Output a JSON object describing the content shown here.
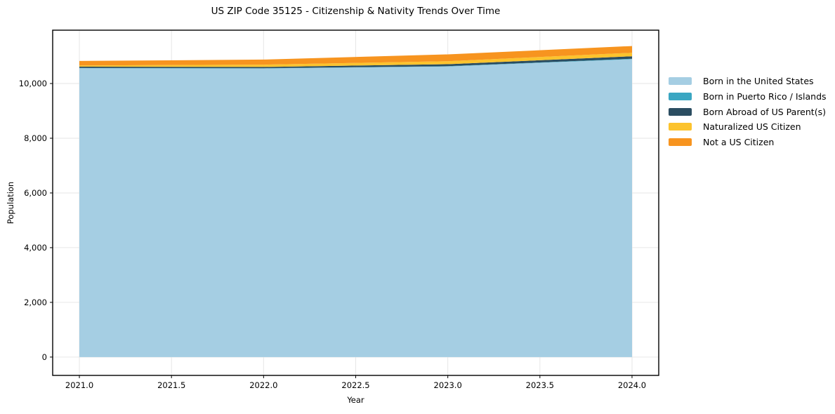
{
  "title": "US ZIP Code 35125 - Citizenship & Nativity Trends Over Time",
  "axes": {
    "xlabel": "Year",
    "ylabel": "Population",
    "x_ticks": [
      {
        "value": 2021.0,
        "label": "2021.0"
      },
      {
        "value": 2021.5,
        "label": "2021.5"
      },
      {
        "value": 2022.0,
        "label": "2022.0"
      },
      {
        "value": 2022.5,
        "label": "2022.5"
      },
      {
        "value": 2023.0,
        "label": "2023.0"
      },
      {
        "value": 2023.5,
        "label": "2023.5"
      },
      {
        "value": 2024.0,
        "label": "2024.0"
      }
    ],
    "y_ticks": [
      {
        "value": 0,
        "label": "0"
      },
      {
        "value": 2000,
        "label": "2,000"
      },
      {
        "value": 4000,
        "label": "4,000"
      },
      {
        "value": 6000,
        "label": "6,000"
      },
      {
        "value": 8000,
        "label": "8,000"
      },
      {
        "value": 10000,
        "label": "10,000"
      }
    ]
  },
  "legend": {
    "items": [
      {
        "label": "Born in the United States",
        "color": "#a5cee3"
      },
      {
        "label": "Born in Puerto Rico / Islands",
        "color": "#3aa6c2"
      },
      {
        "label": "Born Abroad of US Parent(s)",
        "color": "#2b4d61"
      },
      {
        "label": "Naturalized US Citizen",
        "color": "#fcc32d"
      },
      {
        "label": "Not a US Citizen",
        "color": "#f7941f"
      }
    ]
  },
  "chart_data": {
    "type": "area",
    "stacked": true,
    "title": "US ZIP Code 35125 - Citizenship & Nativity Trends Over Time",
    "xlabel": "Year",
    "ylabel": "Population",
    "x": [
      2021,
      2022,
      2023,
      2024
    ],
    "series": [
      {
        "name": "Born in the United States",
        "color": "#a5cee3",
        "values": [
          10560,
          10550,
          10625,
          10890
        ]
      },
      {
        "name": "Born in Puerto Rico / Islands",
        "color": "#3aa6c2",
        "values": [
          10,
          10,
          10,
          15
        ]
      },
      {
        "name": "Born Abroad of US Parent(s)",
        "color": "#2b4d61",
        "values": [
          45,
          45,
          70,
          90
        ]
      },
      {
        "name": "Naturalized US Citizen",
        "color": "#fcc32d",
        "values": [
          45,
          85,
          110,
          130
        ]
      },
      {
        "name": "Not a US Citizen",
        "color": "#f7941f",
        "values": [
          165,
          185,
          250,
          245
        ]
      }
    ],
    "totals": [
      10825,
      10875,
      11065,
      11370
    ],
    "x_range": [
      2020.855,
      2024.145
    ],
    "y_range": [
      -670,
      11950
    ],
    "grid": true,
    "legend_position": "right-outside"
  },
  "colors": {
    "background": "#ffffff",
    "grid": "#e6e6e6",
    "spine": "#000000",
    "tick_text": "#000000"
  }
}
